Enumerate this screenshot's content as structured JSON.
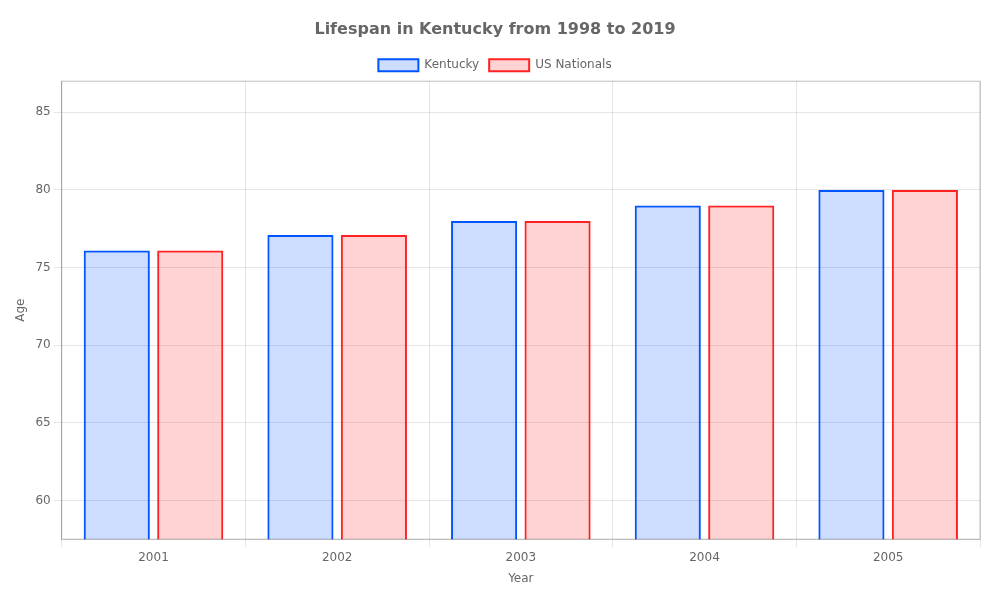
{
  "chart_data": {
    "type": "bar",
    "title": "Lifespan in Kentucky from 1998 to 2019",
    "x_label": "Year",
    "y_label": "Age",
    "categories": [
      "2001",
      "2002",
      "2003",
      "2004",
      "2005"
    ],
    "series": [
      {
        "name": "Kentucky",
        "color": "#0055ff",
        "values": [
          76.1,
          77.1,
          78.0,
          79.0,
          80.0
        ]
      },
      {
        "name": "US Nationals",
        "color": "#ff2222",
        "values": [
          76.1,
          77.1,
          78.0,
          79.0,
          80.0
        ]
      }
    ],
    "ylim": [
      57.5,
      87
    ],
    "yticks": [
      60,
      65,
      70,
      75,
      80,
      85
    ],
    "grid": true,
    "legend": "top"
  }
}
